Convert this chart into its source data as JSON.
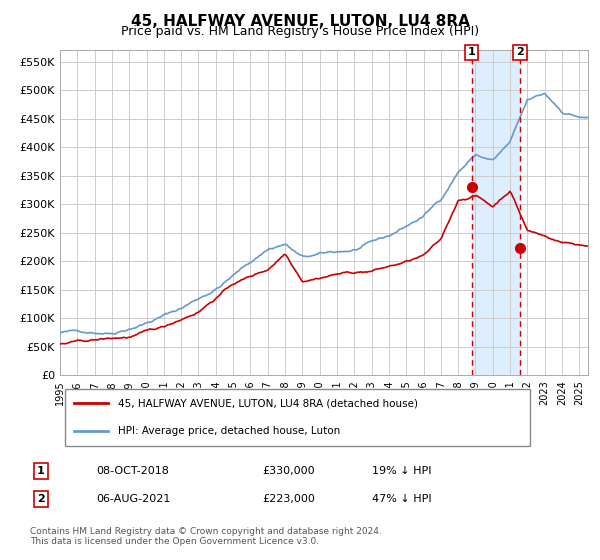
{
  "title": "45, HALFWAY AVENUE, LUTON, LU4 8RA",
  "subtitle": "Price paid vs. HM Land Registry's House Price Index (HPI)",
  "title_fontsize": 11,
  "subtitle_fontsize": 9,
  "background_color": "#ffffff",
  "plot_bg_color": "#ffffff",
  "grid_color": "#cccccc",
  "ylim": [
    0,
    570000
  ],
  "yticks": [
    0,
    50000,
    100000,
    150000,
    200000,
    250000,
    300000,
    350000,
    400000,
    450000,
    500000,
    550000
  ],
  "ytick_labels": [
    "£0",
    "£50K",
    "£100K",
    "£150K",
    "£200K",
    "£250K",
    "£300K",
    "£350K",
    "£400K",
    "£450K",
    "£500K",
    "£550K"
  ],
  "hpi_color": "#6699cc",
  "price_color": "#cc0000",
  "marker_color": "#cc0000",
  "vline_color": "#cc0000",
  "highlight_color": "#ddeeff",
  "transaction1_date": 2018.78,
  "transaction1_price": 330000,
  "transaction2_date": 2021.58,
  "transaction2_price": 223000,
  "legend_price_label": "45, HALFWAY AVENUE, LUTON, LU4 8RA (detached house)",
  "legend_hpi_label": "HPI: Average price, detached house, Luton",
  "table_row1": "08-OCT-2018    £330,000    19% ↓ HPI",
  "table_row2": "06-AUG-2021    £223,000    47% ↓ HPI",
  "footnote": "Contains HM Land Registry data © Crown copyright and database right 2024.\nThis data is licensed under the Open Government Licence v3.0.",
  "xstart": 1995.0,
  "xend": 2025.5
}
